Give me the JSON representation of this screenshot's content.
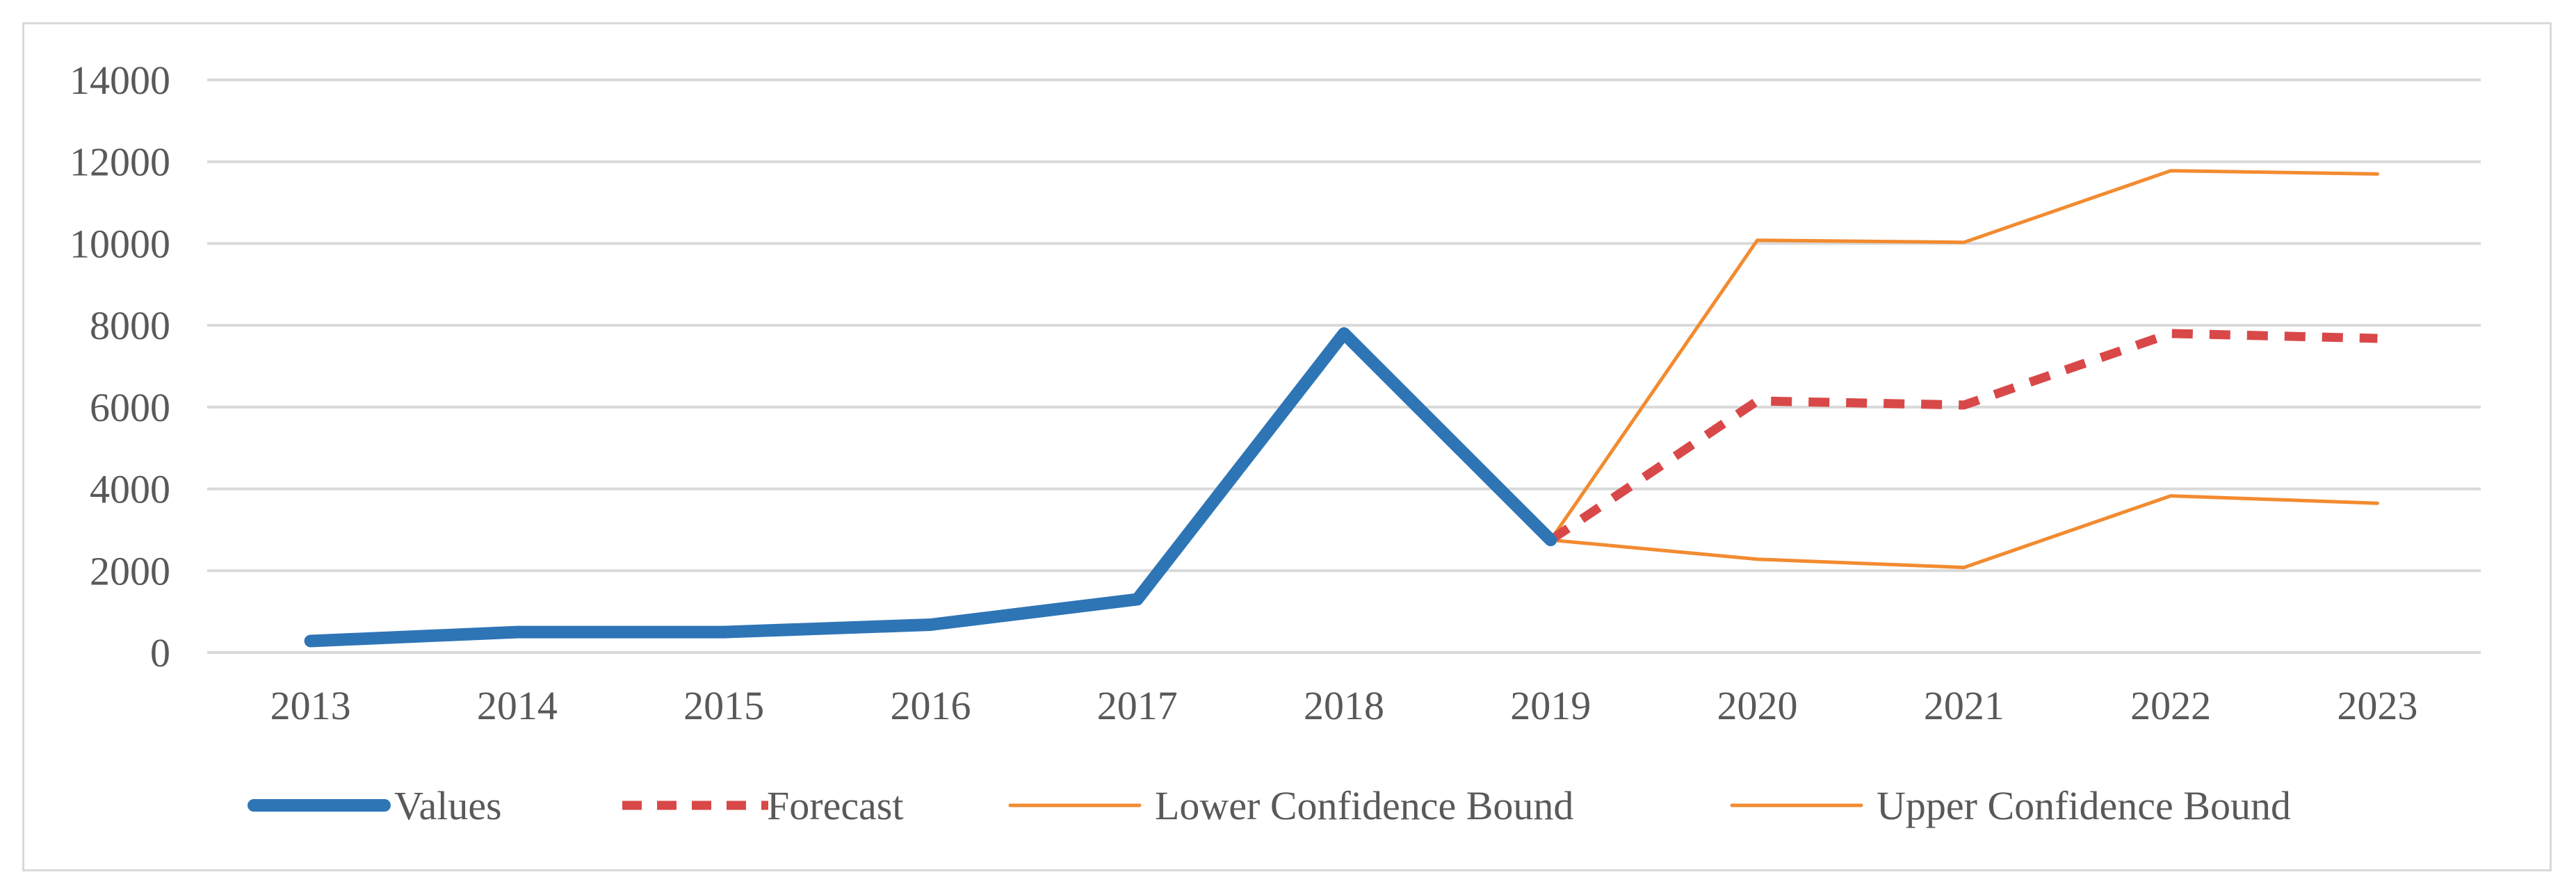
{
  "chart_data": {
    "type": "line",
    "title": "",
    "xlabel": "",
    "ylabel": "",
    "categories": [
      "2013",
      "2014",
      "2015",
      "2016",
      "2017",
      "2018",
      "2019",
      "2020",
      "2021",
      "2022",
      "2023"
    ],
    "ylim": [
      0,
      14000
    ],
    "yticks": [
      0,
      2000,
      4000,
      6000,
      8000,
      10000,
      12000,
      14000
    ],
    "y_tick_labels": [
      "0",
      "2000",
      "4000",
      "6000",
      "8000",
      "10000",
      "12000",
      "14000"
    ],
    "grid": true,
    "legend_position": "bottom",
    "series": [
      {
        "name": "Values",
        "color": "#2e75b6",
        "style": "solid-thick",
        "values": [
          280,
          500,
          500,
          680,
          1300,
          7800,
          2750,
          null,
          null,
          null,
          null
        ]
      },
      {
        "name": "Forecast",
        "color": "#d94848",
        "style": "dashed",
        "values": [
          null,
          null,
          null,
          null,
          null,
          null,
          2750,
          6150,
          6050,
          7800,
          7680
        ]
      },
      {
        "name": "Lower Confidence Bound",
        "color": "#f28b30",
        "style": "solid-thin",
        "values": [
          null,
          null,
          null,
          null,
          null,
          null,
          2750,
          2280,
          2080,
          3830,
          3650
        ]
      },
      {
        "name": "Upper Confidence Bound",
        "color": "#f28b30",
        "style": "solid-thin",
        "values": [
          null,
          null,
          null,
          null,
          null,
          null,
          2750,
          10080,
          10030,
          11780,
          11700
        ]
      }
    ]
  }
}
